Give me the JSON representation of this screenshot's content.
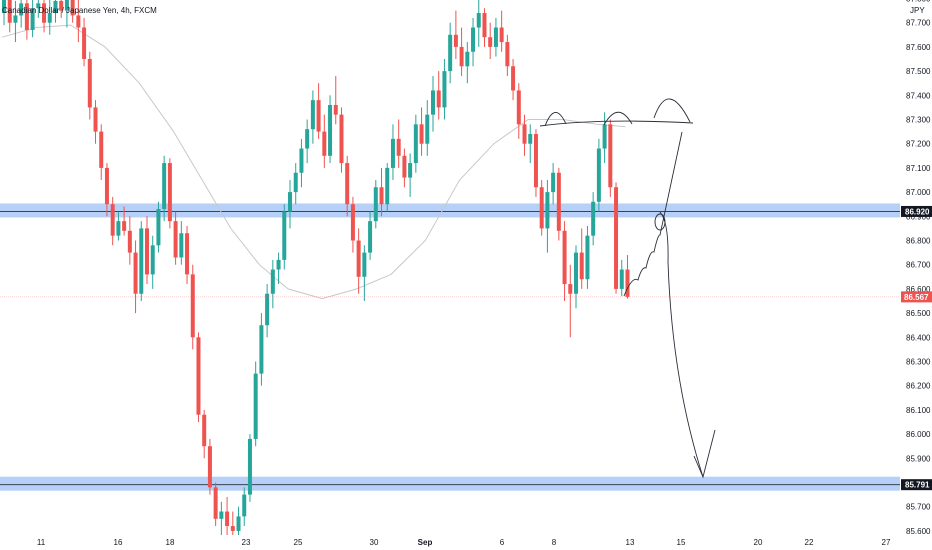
{
  "header": {
    "title": "Canadian Dollar / Japanese Yen, 4h, FXCM",
    "currency": "JPY"
  },
  "colors": {
    "up": "#26a69a",
    "down": "#ef5350",
    "zone": "#9fc0f5",
    "zoneLine": "#2a2e39",
    "price": "#ef5350",
    "ma": "#c8c8c8",
    "drawing": "#2a2e39"
  },
  "chart_data": {
    "type": "candlestick",
    "symbol": "CADJPY",
    "timeframe": "4h",
    "source": "FXCM",
    "y_ticks": [
      "87.800",
      "87.700",
      "87.600",
      "87.500",
      "87.400",
      "87.300",
      "87.200",
      "87.100",
      "87.000",
      "86.900",
      "86.800",
      "86.700",
      "86.600",
      "86.500",
      "86.400",
      "86.300",
      "86.200",
      "86.100",
      "86.000",
      "85.900",
      "85.800",
      "85.700",
      "85.600"
    ],
    "x_ticks": [
      {
        "label": "11",
        "bold": false
      },
      {
        "label": "16",
        "bold": false
      },
      {
        "label": "18",
        "bold": false
      },
      {
        "label": "23",
        "bold": false
      },
      {
        "label": "25",
        "bold": false
      },
      {
        "label": "30",
        "bold": false
      },
      {
        "label": "Sep",
        "bold": true
      },
      {
        "label": "6",
        "bold": false
      },
      {
        "label": "8",
        "bold": false
      },
      {
        "label": "13",
        "bold": false
      },
      {
        "label": "15",
        "bold": false
      },
      {
        "label": "20",
        "bold": false
      },
      {
        "label": "22",
        "bold": false
      },
      {
        "label": "27",
        "bold": false
      }
    ],
    "current_price": "86.567",
    "levels": [
      {
        "value": 86.92,
        "label": "86.920"
      },
      {
        "value": 85.791,
        "label": "85.791"
      }
    ],
    "candles": [
      [
        87.74,
        87.83,
        87.69,
        87.8
      ],
      [
        87.8,
        87.84,
        87.66,
        87.7
      ],
      [
        87.7,
        87.79,
        87.62,
        87.73
      ],
      [
        87.73,
        87.82,
        87.68,
        87.78
      ],
      [
        87.78,
        87.83,
        87.63,
        87.67
      ],
      [
        87.67,
        87.8,
        87.64,
        87.76
      ],
      [
        87.76,
        87.85,
        87.72,
        87.78
      ],
      [
        87.78,
        87.86,
        87.66,
        87.7
      ],
      [
        87.7,
        87.81,
        87.65,
        87.74
      ],
      [
        87.74,
        87.83,
        87.7,
        87.79
      ],
      [
        87.79,
        87.86,
        87.72,
        87.75
      ],
      [
        87.75,
        87.84,
        87.68,
        87.8
      ],
      [
        87.8,
        87.85,
        87.7,
        87.73
      ],
      [
        87.73,
        87.82,
        87.62,
        87.68
      ],
      [
        87.68,
        87.72,
        87.52,
        87.55
      ],
      [
        87.55,
        87.58,
        87.3,
        87.35
      ],
      [
        87.35,
        87.38,
        87.2,
        87.25
      ],
      [
        87.25,
        87.28,
        87.05,
        87.1
      ],
      [
        87.1,
        87.12,
        86.9,
        86.95
      ],
      [
        86.95,
        86.98,
        86.78,
        86.82
      ],
      [
        86.82,
        86.92,
        86.8,
        86.88
      ],
      [
        86.88,
        86.94,
        86.82,
        86.84
      ],
      [
        86.84,
        86.9,
        86.7,
        86.75
      ],
      [
        86.75,
        86.8,
        86.5,
        86.58
      ],
      [
        86.58,
        86.88,
        86.55,
        86.85
      ],
      [
        86.85,
        86.9,
        86.62,
        86.66
      ],
      [
        86.66,
        86.82,
        86.6,
        86.78
      ],
      [
        86.78,
        86.96,
        86.75,
        86.93
      ],
      [
        86.93,
        87.15,
        86.88,
        87.12
      ],
      [
        87.12,
        87.14,
        86.85,
        86.88
      ],
      [
        86.88,
        86.92,
        86.7,
        86.73
      ],
      [
        86.73,
        86.88,
        86.7,
        86.83
      ],
      [
        86.83,
        86.86,
        86.62,
        86.66
      ],
      [
        86.66,
        86.7,
        86.35,
        86.4
      ],
      [
        86.4,
        86.42,
        86.05,
        86.08
      ],
      [
        86.08,
        86.1,
        85.9,
        85.95
      ],
      [
        85.95,
        85.98,
        85.75,
        85.78
      ],
      [
        85.78,
        85.8,
        85.62,
        85.65
      ],
      [
        85.65,
        85.72,
        85.58,
        85.68
      ],
      [
        85.68,
        85.74,
        85.58,
        85.62
      ],
      [
        85.62,
        85.68,
        85.56,
        85.6
      ],
      [
        85.6,
        85.7,
        85.55,
        85.66
      ],
      [
        85.66,
        85.78,
        85.62,
        85.75
      ],
      [
        85.75,
        86.0,
        85.72,
        85.98
      ],
      [
        85.98,
        86.3,
        85.95,
        86.25
      ],
      [
        86.25,
        86.5,
        86.2,
        86.45
      ],
      [
        86.45,
        86.62,
        86.4,
        86.58
      ],
      [
        86.58,
        86.72,
        86.52,
        86.68
      ],
      [
        86.68,
        86.75,
        86.62,
        86.72
      ],
      [
        86.72,
        86.95,
        86.68,
        86.92
      ],
      [
        86.92,
        87.05,
        86.85,
        87.0
      ],
      [
        87.0,
        87.12,
        86.95,
        87.08
      ],
      [
        87.08,
        87.22,
        87.02,
        87.18
      ],
      [
        87.18,
        87.3,
        87.12,
        87.26
      ],
      [
        87.26,
        87.42,
        87.2,
        87.38
      ],
      [
        87.38,
        87.45,
        87.22,
        87.25
      ],
      [
        87.25,
        87.32,
        87.1,
        87.15
      ],
      [
        87.15,
        87.4,
        87.12,
        87.36
      ],
      [
        87.36,
        87.48,
        87.28,
        87.32
      ],
      [
        87.32,
        87.35,
        87.08,
        87.12
      ],
      [
        87.12,
        87.15,
        86.9,
        86.95
      ],
      [
        86.95,
        86.98,
        86.75,
        86.8
      ],
      [
        86.8,
        86.85,
        86.58,
        86.65
      ],
      [
        86.65,
        86.78,
        86.55,
        86.75
      ],
      [
        86.75,
        86.92,
        86.72,
        86.88
      ],
      [
        86.88,
        87.05,
        86.85,
        87.02
      ],
      [
        87.02,
        87.1,
        86.9,
        86.95
      ],
      [
        86.95,
        87.12,
        86.92,
        87.1
      ],
      [
        87.1,
        87.28,
        87.05,
        87.22
      ],
      [
        87.22,
        87.3,
        87.1,
        87.15
      ],
      [
        87.15,
        87.18,
        87.02,
        87.06
      ],
      [
        87.06,
        87.16,
        86.98,
        87.12
      ],
      [
        87.12,
        87.32,
        87.08,
        87.28
      ],
      [
        87.28,
        87.35,
        87.15,
        87.2
      ],
      [
        87.2,
        87.38,
        87.15,
        87.32
      ],
      [
        87.32,
        87.48,
        87.25,
        87.42
      ],
      [
        87.42,
        87.5,
        87.3,
        87.35
      ],
      [
        87.35,
        87.55,
        87.3,
        87.5
      ],
      [
        87.5,
        87.7,
        87.45,
        87.65
      ],
      [
        87.65,
        87.75,
        87.55,
        87.6
      ],
      [
        87.6,
        87.68,
        87.48,
        87.52
      ],
      [
        87.52,
        87.62,
        87.45,
        87.58
      ],
      [
        87.58,
        87.72,
        87.52,
        87.68
      ],
      [
        87.68,
        87.8,
        87.6,
        87.74
      ],
      [
        87.74,
        87.76,
        87.6,
        87.64
      ],
      [
        87.64,
        87.7,
        87.55,
        87.6
      ],
      [
        87.6,
        87.72,
        87.56,
        87.68
      ],
      [
        87.68,
        87.75,
        87.58,
        87.62
      ],
      [
        87.62,
        87.65,
        87.48,
        87.52
      ],
      [
        87.52,
        87.55,
        87.38,
        87.42
      ],
      [
        87.42,
        87.45,
        87.22,
        87.28
      ],
      [
        87.28,
        87.32,
        87.15,
        87.2
      ],
      [
        87.2,
        87.28,
        87.12,
        87.24
      ],
      [
        87.24,
        87.26,
        86.98,
        87.02
      ],
      [
        87.02,
        87.05,
        86.82,
        86.85
      ],
      [
        86.85,
        87.05,
        86.75,
        87.0
      ],
      [
        87.0,
        87.12,
        86.95,
        87.08
      ],
      [
        87.08,
        87.1,
        86.8,
        86.84
      ],
      [
        86.84,
        86.88,
        86.55,
        86.62
      ],
      [
        86.62,
        86.7,
        86.4,
        86.58
      ],
      [
        86.58,
        86.78,
        86.52,
        86.75
      ],
      [
        86.75,
        86.85,
        86.6,
        86.64
      ],
      [
        86.64,
        86.86,
        86.6,
        86.82
      ],
      [
        86.82,
        87.0,
        86.78,
        86.96
      ],
      [
        86.96,
        87.22,
        86.92,
        87.18
      ],
      [
        87.18,
        87.33,
        87.12,
        87.28
      ],
      [
        87.28,
        87.3,
        86.98,
        87.02
      ],
      [
        87.02,
        87.04,
        86.58,
        86.6
      ],
      [
        86.6,
        86.72,
        86.57,
        86.68
      ],
      [
        86.68,
        86.74,
        86.56,
        86.567
      ]
    ],
    "ma": [
      [
        0,
        87.64
      ],
      [
        6,
        87.68
      ],
      [
        12,
        87.69
      ],
      [
        18,
        87.6
      ],
      [
        24,
        87.45
      ],
      [
        30,
        87.25
      ],
      [
        35,
        87.05
      ],
      [
        40,
        86.85
      ],
      [
        45,
        86.7
      ],
      [
        50,
        86.6
      ],
      [
        56,
        86.56
      ],
      [
        62,
        86.6
      ],
      [
        68,
        86.66
      ],
      [
        74,
        86.8
      ],
      [
        80,
        87.05
      ],
      [
        86,
        87.2
      ],
      [
        92,
        87.3
      ],
      [
        98,
        87.3
      ],
      [
        104,
        87.28
      ],
      [
        109,
        87.27
      ]
    ]
  }
}
